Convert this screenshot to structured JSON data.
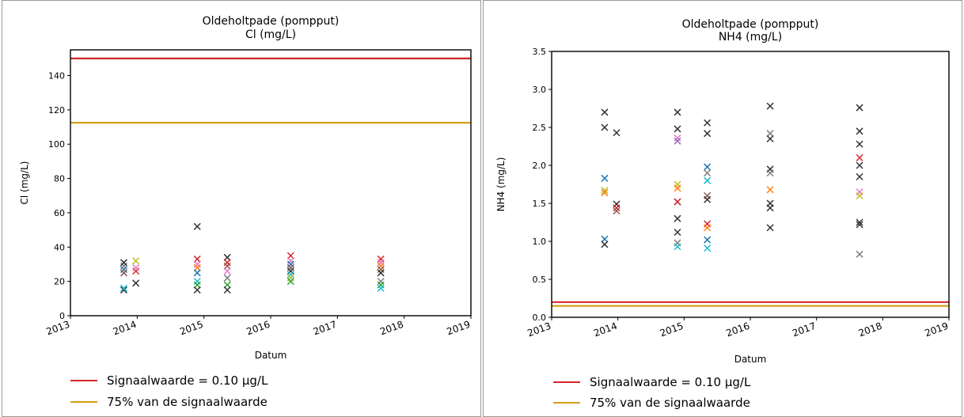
{
  "chart_data": [
    {
      "type": "scatter",
      "title": "Oldeholtpade (pompput)",
      "subtitle": "Cl (mg/L)",
      "xlabel": "Datum",
      "ylabel": "Cl (mg/L)",
      "xlim": [
        2013,
        2019
      ],
      "ylim": [
        0,
        155
      ],
      "x_ticks": [
        "2013",
        "2014",
        "2015",
        "2016",
        "2017",
        "2018",
        "2019"
      ],
      "y_ticks": [
        "0",
        "20",
        "40",
        "60",
        "80",
        "100",
        "120",
        "140"
      ],
      "grid": false,
      "reference_lines": [
        {
          "label": "Signaalwaarde = 0.10 µg/L",
          "value": 150,
          "color": "#d62728"
        },
        {
          "label": "75% van de signaalwaarde",
          "value": 112.5,
          "color": "#d4a017"
        }
      ],
      "points": [
        {
          "x": 2013.8,
          "y": 15,
          "c": "#333333"
        },
        {
          "x": 2013.8,
          "y": 16,
          "c": "#17becf"
        },
        {
          "x": 2013.8,
          "y": 27,
          "c": "#1f77b4"
        },
        {
          "x": 2013.8,
          "y": 29,
          "c": "#7f7f7f"
        },
        {
          "x": 2013.8,
          "y": 31,
          "c": "#333333"
        },
        {
          "x": 2013.8,
          "y": 25,
          "c": "#8c564b"
        },
        {
          "x": 2013.98,
          "y": 19,
          "c": "#333333"
        },
        {
          "x": 2013.98,
          "y": 26,
          "c": "#d62728"
        },
        {
          "x": 2013.98,
          "y": 28,
          "c": "#e377c2"
        },
        {
          "x": 2013.98,
          "y": 32,
          "c": "#bcbd22"
        },
        {
          "x": 2014.9,
          "y": 52,
          "c": "#333333"
        },
        {
          "x": 2014.9,
          "y": 33,
          "c": "#d62728"
        },
        {
          "x": 2014.9,
          "y": 30,
          "c": "#e377c2"
        },
        {
          "x": 2014.9,
          "y": 28,
          "c": "#ff7f0e"
        },
        {
          "x": 2014.9,
          "y": 20,
          "c": "#17becf"
        },
        {
          "x": 2014.9,
          "y": 18,
          "c": "#2ca02c"
        },
        {
          "x": 2014.9,
          "y": 15,
          "c": "#333333"
        },
        {
          "x": 2014.9,
          "y": 25,
          "c": "#1f77b4"
        },
        {
          "x": 2015.35,
          "y": 34,
          "c": "#333333"
        },
        {
          "x": 2015.35,
          "y": 31,
          "c": "#d62728"
        },
        {
          "x": 2015.35,
          "y": 29,
          "c": "#8c564b"
        },
        {
          "x": 2015.35,
          "y": 26,
          "c": "#e377c2"
        },
        {
          "x": 2015.35,
          "y": 22,
          "c": "#7f7f7f"
        },
        {
          "x": 2015.35,
          "y": 18,
          "c": "#2ca02c"
        },
        {
          "x": 2015.35,
          "y": 15,
          "c": "#333333"
        },
        {
          "x": 2016.3,
          "y": 35,
          "c": "#d62728"
        },
        {
          "x": 2016.3,
          "y": 32,
          "c": "#e377c2"
        },
        {
          "x": 2016.3,
          "y": 30,
          "c": "#1f77b4"
        },
        {
          "x": 2016.3,
          "y": 28,
          "c": "#8c564b"
        },
        {
          "x": 2016.3,
          "y": 26,
          "c": "#333333"
        },
        {
          "x": 2016.3,
          "y": 24,
          "c": "#17becf"
        },
        {
          "x": 2016.3,
          "y": 22,
          "c": "#bcbd22"
        },
        {
          "x": 2016.3,
          "y": 20,
          "c": "#2ca02c"
        },
        {
          "x": 2017.65,
          "y": 33,
          "c": "#d62728"
        },
        {
          "x": 2017.65,
          "y": 31,
          "c": "#e377c2"
        },
        {
          "x": 2017.65,
          "y": 29,
          "c": "#ff7f0e"
        },
        {
          "x": 2017.65,
          "y": 27,
          "c": "#8c564b"
        },
        {
          "x": 2017.65,
          "y": 25,
          "c": "#333333"
        },
        {
          "x": 2017.65,
          "y": 20,
          "c": "#7f7f7f"
        },
        {
          "x": 2017.65,
          "y": 18,
          "c": "#2ca02c"
        },
        {
          "x": 2017.65,
          "y": 16,
          "c": "#17becf"
        }
      ]
    },
    {
      "type": "scatter",
      "title": "Oldeholtpade (pompput)",
      "subtitle": "NH4 (mg/L)",
      "xlabel": "Datum",
      "ylabel": "NH4 (mg/L)",
      "xlim": [
        2013,
        2019
      ],
      "ylim": [
        0,
        3.5
      ],
      "x_ticks": [
        "2013",
        "2014",
        "2015",
        "2016",
        "2017",
        "2018",
        "2019"
      ],
      "y_ticks": [
        "0.0",
        "0.5",
        "1.0",
        "1.5",
        "2.0",
        "2.5",
        "3.0",
        "3.5"
      ],
      "grid": false,
      "reference_lines": [
        {
          "label": "Signaalwaarde = 0.10 µg/L",
          "value": 0.2,
          "color": "#d62728"
        },
        {
          "label": "75% van de signaalwaarde",
          "value": 0.15,
          "color": "#d4a017"
        }
      ],
      "points": [
        {
          "x": 2013.8,
          "y": 2.7,
          "c": "#333333"
        },
        {
          "x": 2013.8,
          "y": 2.5,
          "c": "#333333"
        },
        {
          "x": 2013.8,
          "y": 1.83,
          "c": "#1f77b4"
        },
        {
          "x": 2013.8,
          "y": 1.67,
          "c": "#bcbd22"
        },
        {
          "x": 2013.8,
          "y": 1.64,
          "c": "#ff7f0e"
        },
        {
          "x": 2013.8,
          "y": 1.03,
          "c": "#1f77b4"
        },
        {
          "x": 2013.8,
          "y": 0.96,
          "c": "#333333"
        },
        {
          "x": 2013.98,
          "y": 2.43,
          "c": "#333333"
        },
        {
          "x": 2013.98,
          "y": 1.49,
          "c": "#333333"
        },
        {
          "x": 2013.98,
          "y": 1.44,
          "c": "#d62728"
        },
        {
          "x": 2013.98,
          "y": 1.4,
          "c": "#8c564b"
        },
        {
          "x": 2014.9,
          "y": 2.7,
          "c": "#333333"
        },
        {
          "x": 2014.9,
          "y": 2.48,
          "c": "#333333"
        },
        {
          "x": 2014.9,
          "y": 2.36,
          "c": "#e377c2"
        },
        {
          "x": 2014.9,
          "y": 2.32,
          "c": "#9467bd"
        },
        {
          "x": 2014.9,
          "y": 1.75,
          "c": "#bcbd22"
        },
        {
          "x": 2014.9,
          "y": 1.7,
          "c": "#ff7f0e"
        },
        {
          "x": 2014.9,
          "y": 1.52,
          "c": "#1f77b4"
        },
        {
          "x": 2014.9,
          "y": 1.52,
          "c": "#d62728"
        },
        {
          "x": 2014.9,
          "y": 1.3,
          "c": "#333333"
        },
        {
          "x": 2014.9,
          "y": 1.12,
          "c": "#333333"
        },
        {
          "x": 2014.9,
          "y": 0.98,
          "c": "#7f7f7f"
        },
        {
          "x": 2014.9,
          "y": 0.93,
          "c": "#17becf"
        },
        {
          "x": 2015.35,
          "y": 2.56,
          "c": "#333333"
        },
        {
          "x": 2015.35,
          "y": 2.42,
          "c": "#333333"
        },
        {
          "x": 2015.35,
          "y": 1.98,
          "c": "#1f77b4"
        },
        {
          "x": 2015.35,
          "y": 1.9,
          "c": "#7f7f7f"
        },
        {
          "x": 2015.35,
          "y": 1.8,
          "c": "#17becf"
        },
        {
          "x": 2015.35,
          "y": 1.6,
          "c": "#8c564b"
        },
        {
          "x": 2015.35,
          "y": 1.55,
          "c": "#333333"
        },
        {
          "x": 2015.35,
          "y": 1.23,
          "c": "#d62728"
        },
        {
          "x": 2015.35,
          "y": 1.18,
          "c": "#ff7f0e"
        },
        {
          "x": 2015.35,
          "y": 1.02,
          "c": "#1f77b4"
        },
        {
          "x": 2015.35,
          "y": 0.91,
          "c": "#17becf"
        },
        {
          "x": 2016.3,
          "y": 2.78,
          "c": "#333333"
        },
        {
          "x": 2016.3,
          "y": 2.42,
          "c": "#7f7f7f"
        },
        {
          "x": 2016.3,
          "y": 2.35,
          "c": "#333333"
        },
        {
          "x": 2016.3,
          "y": 1.95,
          "c": "#333333"
        },
        {
          "x": 2016.3,
          "y": 1.9,
          "c": "#7f7f7f"
        },
        {
          "x": 2016.3,
          "y": 1.68,
          "c": "#ff7f0e"
        },
        {
          "x": 2016.3,
          "y": 1.5,
          "c": "#333333"
        },
        {
          "x": 2016.3,
          "y": 1.44,
          "c": "#333333"
        },
        {
          "x": 2016.3,
          "y": 1.18,
          "c": "#333333"
        },
        {
          "x": 2017.65,
          "y": 2.76,
          "c": "#333333"
        },
        {
          "x": 2017.65,
          "y": 2.45,
          "c": "#333333"
        },
        {
          "x": 2017.65,
          "y": 2.28,
          "c": "#333333"
        },
        {
          "x": 2017.65,
          "y": 2.1,
          "c": "#d62728"
        },
        {
          "x": 2017.65,
          "y": 2.0,
          "c": "#333333"
        },
        {
          "x": 2017.65,
          "y": 1.85,
          "c": "#333333"
        },
        {
          "x": 2017.65,
          "y": 1.65,
          "c": "#e377c2"
        },
        {
          "x": 2017.65,
          "y": 1.6,
          "c": "#bcbd22"
        },
        {
          "x": 2017.65,
          "y": 1.25,
          "c": "#333333"
        },
        {
          "x": 2017.65,
          "y": 1.22,
          "c": "#333333"
        },
        {
          "x": 2017.65,
          "y": 0.83,
          "c": "#7f7f7f"
        }
      ]
    }
  ]
}
